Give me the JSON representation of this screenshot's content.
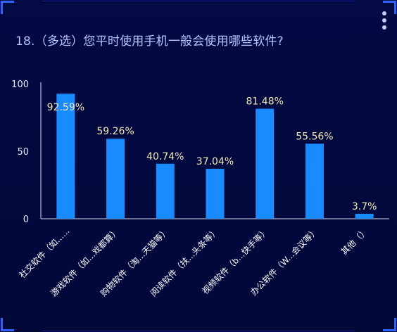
{
  "title": "18.（多选）您平时使用手机一般会使用哪些软件?",
  "colors": {
    "bar": "#1a8bff",
    "label": "#f3e7b4",
    "axis": "#d8dcf5",
    "title": "#b8c3ff"
  },
  "menu_icon": "more-vertical-icon",
  "chart_data": {
    "type": "bar",
    "title": "18.（多选）您平时使用手机一般会使用哪些软件?",
    "xlabel": "",
    "ylabel": "",
    "categories": [
      "社交软件（如......",
      "游戏软件（如...戏都算）",
      "购物软件（淘...天猫等）",
      "阅读软件（扶...头条等）",
      "视频软件（b...快手等）",
      "办公软件（W...会议等）",
      "其他（）"
    ],
    "values": [
      92.59,
      59.26,
      40.74,
      37.04,
      81.48,
      55.56,
      3.7
    ],
    "data_labels": [
      "92.59%",
      "59.26%",
      "40.74%",
      "37.04%",
      "81.48%",
      "55.56%",
      "3.7%"
    ],
    "yticks": [
      "0",
      "50",
      "100"
    ],
    "ylim": [
      0,
      100
    ],
    "grid": false,
    "legend": "none"
  }
}
